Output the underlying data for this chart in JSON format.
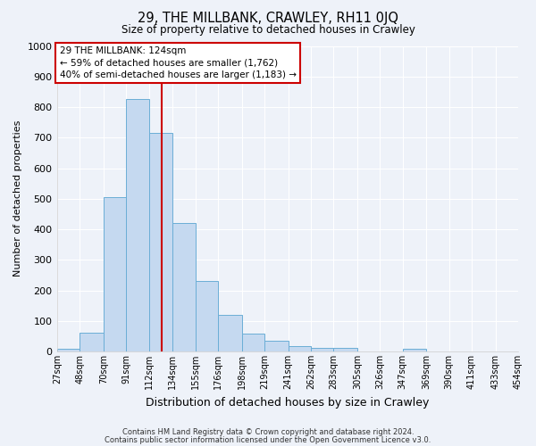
{
  "title": "29, THE MILLBANK, CRAWLEY, RH11 0JQ",
  "subtitle": "Size of property relative to detached houses in Crawley",
  "xlabel": "Distribution of detached houses by size in Crawley",
  "ylabel": "Number of detached properties",
  "bar_color": "#c5d9f0",
  "bar_edge_color": "#6baed6",
  "background_color": "#eef2f9",
  "grid_color": "#ffffff",
  "vline_x": 124,
  "vline_color": "#cc0000",
  "bin_edges": [
    27,
    48,
    70,
    91,
    112,
    134,
    155,
    176,
    198,
    219,
    241,
    262,
    283,
    305,
    326,
    347,
    369,
    390,
    411,
    433,
    454
  ],
  "bar_heights": [
    8,
    60,
    505,
    825,
    715,
    420,
    230,
    120,
    57,
    35,
    18,
    12,
    12,
    0,
    0,
    10,
    0,
    0,
    0,
    0
  ],
  "ylim": [
    0,
    1000
  ],
  "yticks": [
    0,
    100,
    200,
    300,
    400,
    500,
    600,
    700,
    800,
    900,
    1000
  ],
  "annotation_title": "29 THE MILLBANK: 124sqm",
  "annotation_line1": "← 59% of detached houses are smaller (1,762)",
  "annotation_line2": "40% of semi-detached houses are larger (1,183) →",
  "annotation_box_color": "#ffffff",
  "annotation_box_edge": "#cc0000",
  "footer_line1": "Contains HM Land Registry data © Crown copyright and database right 2024.",
  "footer_line2": "Contains public sector information licensed under the Open Government Licence v3.0."
}
